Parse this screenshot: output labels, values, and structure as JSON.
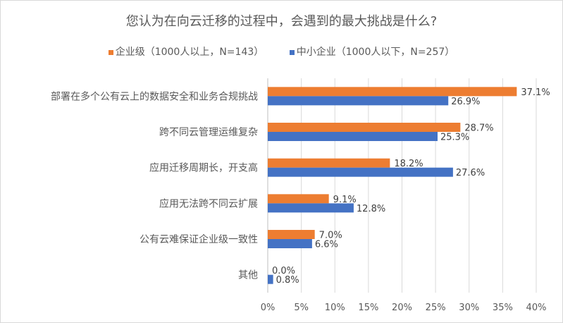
{
  "chart_data": {
    "type": "bar",
    "orientation": "horizontal",
    "title": "您认为在向云迁移的过程中，会遇到的最大挑战是什么?",
    "categories": [
      "部署在多个公有云上的数据安全和业务合规挑战",
      "跨不同云管理运维复杂",
      "应用迁移周期长，开支高",
      "应用无法跨不同云扩展",
      "公有云难保证企业级一致性",
      "其他"
    ],
    "series": [
      {
        "name": "企业级（1000人以上，N=143）",
        "color": "#ed7d31",
        "values": [
          37.1,
          28.7,
          18.2,
          9.1,
          7.0,
          0.0
        ],
        "labels": [
          "37.1%",
          "28.7%",
          "18.2%",
          "9.1%",
          "7.0%",
          "0.0%"
        ]
      },
      {
        "name": "中小企业（1000人以下，N=257）",
        "color": "#4472c4",
        "values": [
          26.9,
          25.3,
          27.6,
          12.8,
          6.6,
          0.8
        ],
        "labels": [
          "26.9%",
          "25.3%",
          "27.6%",
          "12.8%",
          "6.6%",
          "0.8%"
        ]
      }
    ],
    "xlim": [
      0,
      40
    ],
    "xticks": [
      "0%",
      "5%",
      "10%",
      "15%",
      "20%",
      "25%",
      "30%",
      "35%",
      "40%"
    ],
    "grid": true,
    "legend_position": "top"
  }
}
